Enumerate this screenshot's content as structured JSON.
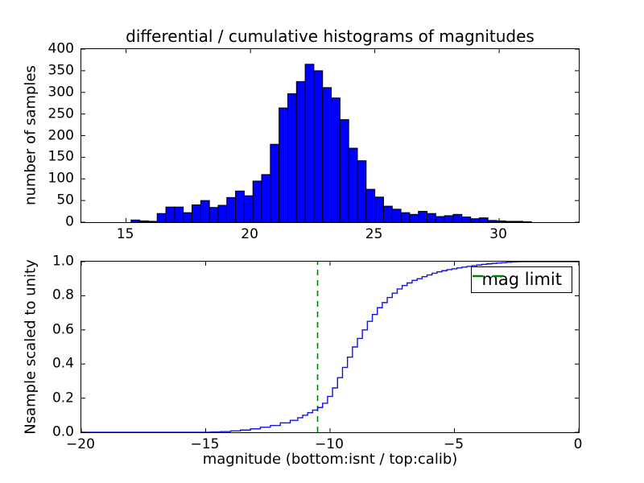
{
  "figure_title": "differential / cumulative histograms of magnitudes",
  "colors": {
    "bar_fill": "#0000ff",
    "bar_edge": "#000000",
    "cumulative_line": "#1515dd",
    "mag_limit_line": "#008000",
    "axes_edge": "#000000",
    "background": "#ffffff"
  },
  "chart_data": [
    {
      "type": "bar",
      "subplot": "top",
      "title": "differential / cumulative histograms of magnitudes",
      "ylabel": "number of samples",
      "xlim": [
        13.2,
        33.2
      ],
      "ylim": [
        0,
        400
      ],
      "xticks": [
        15,
        20,
        25,
        30
      ],
      "xtick_labels": [
        "15",
        "20",
        "25",
        "30"
      ],
      "yticks": [
        0,
        50,
        100,
        150,
        200,
        250,
        300,
        350,
        400
      ],
      "ytick_labels": [
        "0",
        "50",
        "100",
        "150",
        "200",
        "250",
        "300",
        "350",
        "400"
      ],
      "bin_start": 15.2,
      "bin_width": 0.35,
      "counts": [
        5,
        3,
        2,
        20,
        35,
        35,
        22,
        40,
        50,
        34,
        39,
        57,
        72,
        61,
        95,
        110,
        180,
        264,
        297,
        325,
        365,
        350,
        311,
        287,
        237,
        171,
        142,
        76,
        58,
        37,
        30,
        22,
        18,
        25,
        20,
        13,
        15,
        18,
        12,
        8,
        10,
        4,
        3,
        2,
        2,
        1
      ],
      "grid": false
    },
    {
      "type": "line",
      "subplot": "bottom",
      "ylabel": "Nsample scaled to unity",
      "xlabel": "magnitude (bottom:isnt / top:calib)",
      "xlim": [
        -20,
        0
      ],
      "ylim": [
        0.0,
        1.0
      ],
      "xticks": [
        -20,
        -15,
        -10,
        -5,
        0
      ],
      "xtick_labels": [
        "−20",
        "−15",
        "−10",
        "−5",
        "0"
      ],
      "yticks": [
        0.0,
        0.2,
        0.4,
        0.6,
        0.8,
        1.0
      ],
      "ytick_labels": [
        "0.0",
        "0.2",
        "0.4",
        "0.6",
        "0.8",
        "1.0"
      ],
      "step_points": [
        [
          -20,
          0
        ],
        [
          -14.8,
          0.002
        ],
        [
          -14.4,
          0.004
        ],
        [
          -14.0,
          0.008
        ],
        [
          -13.6,
          0.013
        ],
        [
          -13.2,
          0.02
        ],
        [
          -12.8,
          0.03
        ],
        [
          -12.4,
          0.04
        ],
        [
          -12.0,
          0.055
        ],
        [
          -11.6,
          0.07
        ],
        [
          -11.3,
          0.085
        ],
        [
          -11.1,
          0.1
        ],
        [
          -10.9,
          0.115
        ],
        [
          -10.7,
          0.13
        ],
        [
          -10.5,
          0.145
        ],
        [
          -10.3,
          0.17
        ],
        [
          -10.1,
          0.21
        ],
        [
          -9.9,
          0.26
        ],
        [
          -9.7,
          0.32
        ],
        [
          -9.5,
          0.38
        ],
        [
          -9.3,
          0.44
        ],
        [
          -9.1,
          0.5
        ],
        [
          -8.9,
          0.55
        ],
        [
          -8.7,
          0.6
        ],
        [
          -8.5,
          0.65
        ],
        [
          -8.3,
          0.69
        ],
        [
          -8.1,
          0.73
        ],
        [
          -7.9,
          0.76
        ],
        [
          -7.7,
          0.79
        ],
        [
          -7.5,
          0.815
        ],
        [
          -7.3,
          0.84
        ],
        [
          -7.1,
          0.86
        ],
        [
          -6.9,
          0.875
        ],
        [
          -6.7,
          0.89
        ],
        [
          -6.5,
          0.9
        ],
        [
          -6.3,
          0.912
        ],
        [
          -6.1,
          0.922
        ],
        [
          -5.9,
          0.932
        ],
        [
          -5.7,
          0.94
        ],
        [
          -5.5,
          0.947
        ],
        [
          -5.3,
          0.953
        ],
        [
          -5.1,
          0.958
        ],
        [
          -4.9,
          0.963
        ],
        [
          -4.7,
          0.968
        ],
        [
          -4.5,
          0.972
        ],
        [
          -4.3,
          0.976
        ],
        [
          -4.1,
          0.98
        ],
        [
          -3.9,
          0.984
        ],
        [
          -3.7,
          0.987
        ],
        [
          -3.5,
          0.99
        ],
        [
          -3.3,
          0.992
        ],
        [
          -3.1,
          0.994
        ],
        [
          -2.9,
          0.996
        ],
        [
          -2.7,
          0.998
        ],
        [
          -2.5,
          0.999
        ],
        [
          -2.3,
          1.0
        ],
        [
          0,
          1.0
        ]
      ],
      "mag_limit": {
        "x": -10.5,
        "label": "mag limit",
        "style": "dashed"
      },
      "legend_position": "upper right",
      "grid": false
    }
  ]
}
